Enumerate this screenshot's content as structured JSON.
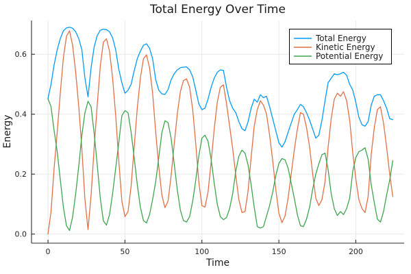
{
  "colors": {
    "background": "#FFFFFF",
    "grid": "#E8E8E8",
    "axis": "#2B2B2B",
    "tick_text": "#222222",
    "title_text": "#1A1A1A",
    "legend_border": "#000000",
    "legend_background": "#FFFFFF"
  },
  "chart_data": {
    "type": "line",
    "title": "Total Energy Over Time",
    "xlabel": "Time",
    "ylabel": "Energy",
    "xlim": [
      -10.7,
      231.4
    ],
    "ylim": [
      -0.0304,
      0.7125
    ],
    "xticks": [
      0,
      50,
      100,
      150,
      200
    ],
    "xtick_labels": [
      "0",
      "50",
      "100",
      "150",
      "200"
    ],
    "yticks": [
      0.0,
      0.2,
      0.4,
      0.6
    ],
    "ytick_labels": [
      "0.0",
      "0.2",
      "0.4",
      "0.6"
    ],
    "grid": true,
    "legend_position": "top-right",
    "x": [
      0,
      2,
      4,
      6,
      8,
      10,
      12,
      14,
      16,
      18,
      20,
      22,
      24,
      26,
      28,
      30,
      32,
      34,
      36,
      38,
      40,
      42,
      44,
      46,
      48,
      50,
      52,
      54,
      56,
      58,
      60,
      62,
      64,
      66,
      68,
      70,
      72,
      74,
      76,
      78,
      80,
      82,
      84,
      86,
      88,
      90,
      92,
      94,
      96,
      98,
      100,
      102,
      104,
      106,
      108,
      110,
      112,
      114,
      116,
      118,
      120,
      122,
      124,
      126,
      128,
      130,
      132,
      134,
      136,
      138,
      140,
      142,
      144,
      146,
      148,
      150,
      152,
      154,
      156,
      158,
      160,
      162,
      164,
      166,
      168,
      170,
      172,
      174,
      176,
      178,
      180,
      182,
      184,
      186,
      188,
      190,
      192,
      194,
      196,
      198,
      200,
      202,
      204,
      206,
      208,
      210,
      212,
      214,
      216,
      218,
      220,
      222,
      224
    ],
    "series": [
      {
        "name": "Total Energy",
        "color": "#009AFA",
        "values": [
          0.452,
          0.5,
          0.565,
          0.615,
          0.652,
          0.678,
          0.688,
          0.69,
          0.687,
          0.675,
          0.652,
          0.615,
          0.52,
          0.458,
          0.555,
          0.625,
          0.662,
          0.68,
          0.684,
          0.682,
          0.675,
          0.655,
          0.615,
          0.55,
          0.505,
          0.47,
          0.48,
          0.5,
          0.545,
          0.585,
          0.61,
          0.63,
          0.635,
          0.62,
          0.585,
          0.515,
          0.48,
          0.468,
          0.466,
          0.482,
          0.515,
          0.535,
          0.548,
          0.555,
          0.557,
          0.558,
          0.548,
          0.525,
          0.48,
          0.435,
          0.415,
          0.42,
          0.45,
          0.49,
          0.52,
          0.54,
          0.548,
          0.546,
          0.49,
          0.445,
          0.42,
          0.405,
          0.375,
          0.352,
          0.345,
          0.375,
          0.42,
          0.45,
          0.44,
          0.465,
          0.455,
          0.46,
          0.425,
          0.385,
          0.345,
          0.305,
          0.29,
          0.308,
          0.34,
          0.37,
          0.4,
          0.415,
          0.433,
          0.425,
          0.405,
          0.38,
          0.35,
          0.32,
          0.33,
          0.38,
          0.445,
          0.505,
          0.52,
          0.535,
          0.532,
          0.535,
          0.54,
          0.53,
          0.5,
          0.48,
          0.44,
          0.39,
          0.365,
          0.36,
          0.375,
          0.43,
          0.46,
          0.465,
          0.465,
          0.445,
          0.42,
          0.385,
          0.382
        ]
      },
      {
        "name": "Kinetic Energy",
        "color": "#E36F47",
        "values": [
          0.0,
          0.075,
          0.22,
          0.34,
          0.47,
          0.588,
          0.66,
          0.678,
          0.63,
          0.54,
          0.425,
          0.285,
          0.115,
          0.015,
          0.13,
          0.29,
          0.43,
          0.56,
          0.64,
          0.652,
          0.61,
          0.52,
          0.395,
          0.245,
          0.11,
          0.058,
          0.075,
          0.16,
          0.29,
          0.42,
          0.52,
          0.585,
          0.598,
          0.555,
          0.47,
          0.34,
          0.225,
          0.13,
          0.088,
          0.11,
          0.195,
          0.3,
          0.4,
          0.475,
          0.512,
          0.518,
          0.49,
          0.415,
          0.3,
          0.175,
          0.095,
          0.09,
          0.14,
          0.24,
          0.35,
          0.44,
          0.49,
          0.498,
          0.435,
          0.36,
          0.285,
          0.195,
          0.115,
          0.072,
          0.075,
          0.145,
          0.255,
          0.36,
          0.415,
          0.445,
          0.43,
          0.4,
          0.33,
          0.245,
          0.15,
          0.07,
          0.038,
          0.06,
          0.12,
          0.2,
          0.28,
          0.35,
          0.405,
          0.4,
          0.355,
          0.29,
          0.2,
          0.12,
          0.095,
          0.115,
          0.175,
          0.29,
          0.385,
          0.45,
          0.47,
          0.46,
          0.475,
          0.445,
          0.38,
          0.27,
          0.185,
          0.115,
          0.085,
          0.072,
          0.125,
          0.265,
          0.355,
          0.415,
          0.425,
          0.37,
          0.29,
          0.2,
          0.125
        ]
      },
      {
        "name": "Potential Energy",
        "color": "#3EA44E",
        "values": [
          0.452,
          0.425,
          0.345,
          0.275,
          0.182,
          0.09,
          0.028,
          0.012,
          0.057,
          0.135,
          0.227,
          0.33,
          0.405,
          0.443,
          0.425,
          0.335,
          0.232,
          0.12,
          0.044,
          0.03,
          0.065,
          0.135,
          0.22,
          0.305,
          0.395,
          0.412,
          0.405,
          0.34,
          0.255,
          0.165,
          0.09,
          0.045,
          0.037,
          0.065,
          0.115,
          0.175,
          0.255,
          0.338,
          0.378,
          0.372,
          0.32,
          0.235,
          0.148,
          0.08,
          0.045,
          0.04,
          0.058,
          0.11,
          0.18,
          0.26,
          0.32,
          0.33,
          0.31,
          0.25,
          0.17,
          0.1,
          0.058,
          0.048,
          0.055,
          0.085,
          0.135,
          0.21,
          0.26,
          0.28,
          0.27,
          0.23,
          0.165,
          0.09,
          0.025,
          0.02,
          0.025,
          0.06,
          0.095,
          0.14,
          0.195,
          0.235,
          0.252,
          0.248,
          0.22,
          0.17,
          0.12,
          0.065,
          0.028,
          0.025,
          0.05,
          0.09,
          0.15,
          0.2,
          0.235,
          0.265,
          0.27,
          0.215,
          0.135,
          0.085,
          0.062,
          0.075,
          0.065,
          0.085,
          0.12,
          0.21,
          0.255,
          0.275,
          0.28,
          0.288,
          0.25,
          0.165,
          0.105,
          0.05,
          0.04,
          0.075,
          0.13,
          0.18,
          0.245
        ]
      }
    ]
  }
}
